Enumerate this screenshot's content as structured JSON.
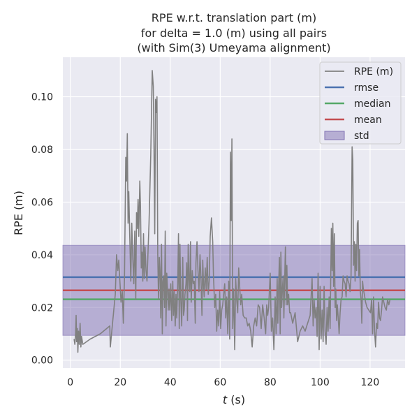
{
  "chart_data": {
    "type": "line",
    "title_lines": [
      "RPE w.r.t. translation part (m)",
      "for delta = 1.0 (m) using all pairs",
      "(with Sim(3) Umeyama alignment)"
    ],
    "xlabel_italic": "t",
    "xlabel_rest": " (s)",
    "ylabel": "RPE (m)",
    "xlim": [
      -3,
      134
    ],
    "ylim": [
      -0.003,
      0.115
    ],
    "xticks": [
      0,
      20,
      40,
      60,
      80,
      100,
      120
    ],
    "xtick_labels": [
      "0",
      "20",
      "40",
      "60",
      "80",
      "100",
      "120"
    ],
    "yticks": [
      0.0,
      0.02,
      0.04,
      0.06,
      0.08,
      0.1
    ],
    "ytick_labels": [
      "0.00",
      "0.02",
      "0.04",
      "0.06",
      "0.08",
      "0.10"
    ],
    "grid": true,
    "legend_position": "top-right",
    "stats": {
      "rmse": 0.0315,
      "median": 0.0231,
      "mean": 0.0265,
      "std": 0.0171
    },
    "series": [
      {
        "name": "RPE (m)",
        "color": "#808080",
        "points": [
          [
            1.5,
            0.008
          ],
          [
            1.8,
            0.006
          ],
          [
            2.1,
            0.01
          ],
          [
            2.3,
            0.017
          ],
          [
            2.5,
            0.007
          ],
          [
            2.8,
            0.012
          ],
          [
            3.0,
            0.003
          ],
          [
            3.3,
            0.011
          ],
          [
            3.6,
            0.006
          ],
          [
            3.9,
            0.014
          ],
          [
            4.2,
            0.005
          ],
          [
            4.5,
            0.009
          ],
          [
            5.0,
            0.006
          ],
          [
            8.0,
            0.008
          ],
          [
            12.0,
            0.01
          ],
          [
            15.8,
            0.013
          ],
          [
            16.0,
            0.005
          ],
          [
            17.0,
            0.015
          ],
          [
            18.0,
            0.025
          ],
          [
            18.5,
            0.04
          ],
          [
            19.0,
            0.034
          ],
          [
            19.4,
            0.038
          ],
          [
            19.8,
            0.031
          ],
          [
            20.3,
            0.022
          ],
          [
            20.8,
            0.026
          ],
          [
            21.2,
            0.014
          ],
          [
            21.7,
            0.032
          ],
          [
            22.2,
            0.077
          ],
          [
            22.5,
            0.068
          ],
          [
            22.8,
            0.086
          ],
          [
            23.1,
            0.052
          ],
          [
            23.4,
            0.064
          ],
          [
            23.8,
            0.046
          ],
          [
            24.2,
            0.03
          ],
          [
            24.6,
            0.052
          ],
          [
            25.0,
            0.039
          ],
          [
            25.4,
            0.029
          ],
          [
            25.8,
            0.049
          ],
          [
            26.2,
            0.023
          ],
          [
            26.5,
            0.056
          ],
          [
            26.8,
            0.05
          ],
          [
            27.1,
            0.061
          ],
          [
            27.4,
            0.047
          ],
          [
            27.8,
            0.068
          ],
          [
            28.1,
            0.058
          ],
          [
            28.4,
            0.035
          ],
          [
            28.7,
            0.041
          ],
          [
            29.0,
            0.03
          ],
          [
            29.3,
            0.048
          ],
          [
            29.6,
            0.031
          ],
          [
            29.9,
            0.043
          ],
          [
            30.3,
            0.034
          ],
          [
            30.7,
            0.03
          ],
          [
            31.5,
            0.052
          ],
          [
            32.2,
            0.078
          ],
          [
            32.8,
            0.11
          ],
          [
            33.2,
            0.104
          ],
          [
            33.5,
            0.081
          ],
          [
            33.8,
            0.048
          ],
          [
            34.1,
            0.099
          ],
          [
            34.4,
            0.094
          ],
          [
            34.7,
            0.1
          ],
          [
            35.0,
            0.04
          ],
          [
            35.3,
            0.023
          ],
          [
            35.6,
            0.039
          ],
          [
            35.9,
            0.034
          ],
          [
            36.2,
            0.016
          ],
          [
            36.5,
            0.044
          ],
          [
            36.8,
            0.01
          ],
          [
            37.1,
            0.03
          ],
          [
            37.4,
            0.032
          ],
          [
            37.7,
            0.02
          ],
          [
            38.0,
            0.049
          ],
          [
            38.3,
            0.013
          ],
          [
            38.6,
            0.033
          ],
          [
            38.9,
            0.027
          ],
          [
            39.2,
            0.019
          ],
          [
            39.5,
            0.027
          ],
          [
            39.8,
            0.019
          ],
          [
            40.2,
            0.029
          ],
          [
            40.6,
            0.015
          ],
          [
            41.0,
            0.03
          ],
          [
            41.3,
            0.017
          ],
          [
            41.6,
            0.026
          ],
          [
            42.0,
            0.013
          ],
          [
            42.3,
            0.025
          ],
          [
            42.6,
            0.016
          ],
          [
            43.0,
            0.029
          ],
          [
            43.3,
            0.048
          ],
          [
            43.6,
            0.012
          ],
          [
            43.9,
            0.044
          ],
          [
            44.2,
            0.024
          ],
          [
            44.6,
            0.013
          ],
          [
            45.0,
            0.039
          ],
          [
            45.3,
            0.017
          ],
          [
            45.6,
            0.019
          ],
          [
            45.9,
            0.025
          ],
          [
            46.3,
            0.029
          ],
          [
            46.6,
            0.037
          ],
          [
            46.9,
            0.015
          ],
          [
            47.2,
            0.044
          ],
          [
            47.5,
            0.031
          ],
          [
            47.8,
            0.026
          ],
          [
            48.1,
            0.045
          ],
          [
            48.4,
            0.022
          ],
          [
            48.8,
            0.034
          ],
          [
            49.2,
            0.029
          ],
          [
            49.6,
            0.03
          ],
          [
            50.0,
            0.014
          ],
          [
            50.3,
            0.037
          ],
          [
            50.7,
            0.045
          ],
          [
            51.1,
            0.034
          ],
          [
            51.5,
            0.026
          ],
          [
            51.9,
            0.04
          ],
          [
            52.3,
            0.031
          ],
          [
            52.7,
            0.017
          ],
          [
            53.0,
            0.038
          ],
          [
            53.3,
            0.029
          ],
          [
            53.6,
            0.024
          ],
          [
            54.0,
            0.035
          ],
          [
            54.4,
            0.027
          ],
          [
            54.8,
            0.039
          ],
          [
            55.2,
            0.025
          ],
          [
            55.6,
            0.03
          ],
          [
            56.0,
            0.047
          ],
          [
            56.5,
            0.054
          ],
          [
            57.0,
            0.045
          ],
          [
            57.3,
            0.032
          ],
          [
            57.8,
            0.02
          ],
          [
            58.2,
            0.025
          ],
          [
            58.6,
            0.011
          ],
          [
            59.0,
            0.019
          ],
          [
            59.4,
            0.013
          ],
          [
            59.8,
            0.026
          ],
          [
            60.2,
            0.012
          ],
          [
            60.6,
            0.019
          ],
          [
            61.0,
            0.021
          ],
          [
            61.4,
            0.025
          ],
          [
            61.8,
            0.029
          ],
          [
            62.2,
            0.016
          ],
          [
            62.6,
            0.024
          ],
          [
            63.0,
            0.01
          ],
          [
            63.4,
            0.03
          ],
          [
            63.8,
            0.008
          ],
          [
            64.1,
            0.079
          ],
          [
            64.4,
            0.053
          ],
          [
            64.7,
            0.084
          ],
          [
            65.0,
            0.012
          ],
          [
            65.4,
            0.027
          ],
          [
            65.8,
            0.004
          ],
          [
            66.2,
            0.031
          ],
          [
            66.6,
            0.023
          ],
          [
            67.0,
            0.018
          ],
          [
            67.4,
            0.035
          ],
          [
            67.8,
            0.028
          ],
          [
            68.2,
            0.021
          ],
          [
            68.6,
            0.025
          ],
          [
            69.2,
            0.017
          ],
          [
            69.8,
            0.016
          ],
          [
            70.4,
            0.016
          ],
          [
            71.0,
            0.013
          ],
          [
            71.6,
            0.014
          ],
          [
            72.2,
            0.011
          ],
          [
            72.8,
            0.005
          ],
          [
            73.4,
            0.013
          ],
          [
            74.0,
            0.016
          ],
          [
            74.6,
            0.013
          ],
          [
            75.2,
            0.021
          ],
          [
            75.8,
            0.02
          ],
          [
            76.4,
            0.012
          ],
          [
            77.0,
            0.021
          ],
          [
            77.6,
            0.016
          ],
          [
            78.2,
            0.01
          ],
          [
            78.6,
            0.021
          ],
          [
            79.0,
            0.017
          ],
          [
            79.4,
            0.02
          ],
          [
            80.0,
            0.033
          ],
          [
            80.5,
            0.011
          ],
          [
            81.0,
            0.016
          ],
          [
            81.5,
            0.004
          ],
          [
            82.0,
            0.024
          ],
          [
            82.4,
            0.01
          ],
          [
            82.8,
            0.031
          ],
          [
            83.1,
            0.014
          ],
          [
            83.4,
            0.028
          ],
          [
            83.7,
            0.039
          ],
          [
            84.0,
            0.01
          ],
          [
            84.3,
            0.041
          ],
          [
            84.6,
            0.02
          ],
          [
            84.9,
            0.027
          ],
          [
            85.2,
            0.032
          ],
          [
            85.5,
            0.016
          ],
          [
            85.8,
            0.03
          ],
          [
            86.1,
            0.043
          ],
          [
            86.4,
            0.021
          ],
          [
            86.7,
            0.036
          ],
          [
            87.0,
            0.021
          ],
          [
            87.4,
            0.025
          ],
          [
            87.8,
            0.018
          ],
          [
            88.2,
            0.018
          ],
          [
            89.0,
            0.014
          ],
          [
            90.0,
            0.018
          ],
          [
            91.0,
            0.007
          ],
          [
            92.0,
            0.011
          ],
          [
            93.0,
            0.013
          ],
          [
            94.0,
            0.011
          ],
          [
            95.0,
            0.014
          ],
          [
            96.0,
            0.017
          ],
          [
            96.8,
            0.031
          ],
          [
            97.2,
            0.013
          ],
          [
            97.6,
            0.023
          ],
          [
            98.0,
            0.016
          ],
          [
            98.4,
            0.02
          ],
          [
            98.8,
            0.009
          ],
          [
            99.2,
            0.033
          ],
          [
            99.6,
            0.004
          ],
          [
            100.0,
            0.028
          ],
          [
            100.4,
            0.008
          ],
          [
            100.8,
            0.019
          ],
          [
            101.2,
            0.007
          ],
          [
            101.6,
            0.028
          ],
          [
            102.0,
            0.011
          ],
          [
            102.4,
            0.006
          ],
          [
            102.8,
            0.02
          ],
          [
            103.2,
            0.011
          ],
          [
            103.6,
            0.024
          ],
          [
            104.0,
            0.012
          ],
          [
            104.5,
            0.05
          ],
          [
            104.8,
            0.034
          ],
          [
            105.1,
            0.052
          ],
          [
            105.4,
            0.028
          ],
          [
            105.7,
            0.048
          ],
          [
            106.0,
            0.02
          ],
          [
            106.3,
            0.027
          ],
          [
            106.6,
            0.015
          ],
          [
            106.9,
            0.021
          ],
          [
            107.2,
            0.017
          ],
          [
            107.6,
            0.01
          ],
          [
            108.0,
            0.018
          ],
          [
            108.4,
            0.023
          ],
          [
            108.8,
            0.024
          ],
          [
            109.2,
            0.032
          ],
          [
            109.6,
            0.03
          ],
          [
            110.0,
            0.029
          ],
          [
            110.4,
            0.024
          ],
          [
            110.8,
            0.032
          ],
          [
            111.2,
            0.03
          ],
          [
            111.6,
            0.029
          ],
          [
            112.0,
            0.026
          ],
          [
            112.4,
            0.032
          ],
          [
            112.8,
            0.081
          ],
          [
            113.1,
            0.076
          ],
          [
            113.4,
            0.036
          ],
          [
            113.7,
            0.045
          ],
          [
            114.0,
            0.03
          ],
          [
            114.3,
            0.044
          ],
          [
            114.6,
            0.034
          ],
          [
            114.9,
            0.052
          ],
          [
            115.2,
            0.053
          ],
          [
            115.5,
            0.032
          ],
          [
            115.8,
            0.042
          ],
          [
            116.1,
            0.026
          ],
          [
            116.4,
            0.023
          ],
          [
            116.7,
            0.014
          ],
          [
            117.0,
            0.03
          ],
          [
            117.3,
            0.027
          ],
          [
            117.7,
            0.025
          ],
          [
            118.2,
            0.022
          ],
          [
            118.8,
            0.02
          ],
          [
            119.5,
            0.019
          ],
          [
            120.2,
            0.018
          ],
          [
            120.6,
            0.023
          ],
          [
            121.0,
            0.01
          ],
          [
            121.4,
            0.024
          ],
          [
            121.8,
            0.011
          ],
          [
            122.2,
            0.005
          ],
          [
            122.6,
            0.014
          ],
          [
            123.0,
            0.012
          ],
          [
            123.4,
            0.022
          ],
          [
            123.8,
            0.016
          ],
          [
            124.2,
            0.015
          ],
          [
            124.6,
            0.019
          ],
          [
            125.0,
            0.024
          ],
          [
            125.5,
            0.022
          ],
          [
            126.0,
            0.02
          ],
          [
            126.5,
            0.019
          ],
          [
            127.0,
            0.023
          ],
          [
            127.5,
            0.021
          ],
          [
            128.0,
            0.023
          ]
        ]
      }
    ],
    "legend": [
      {
        "label": "RPE (m)",
        "kind": "line",
        "color": "#808080"
      },
      {
        "label": "rmse",
        "kind": "line",
        "color": "#4c72b0"
      },
      {
        "label": "median",
        "kind": "line",
        "color": "#55a868"
      },
      {
        "label": "mean",
        "kind": "line",
        "color": "#c44e52"
      },
      {
        "label": "std",
        "kind": "patch",
        "color": "#8172b3"
      }
    ],
    "colors": {
      "background": "#eaeaf2",
      "grid": "#ffffff",
      "rpe": "#808080",
      "rmse": "#4c72b0",
      "median": "#55a868",
      "mean": "#c44e52",
      "std": "#8172b3"
    }
  }
}
